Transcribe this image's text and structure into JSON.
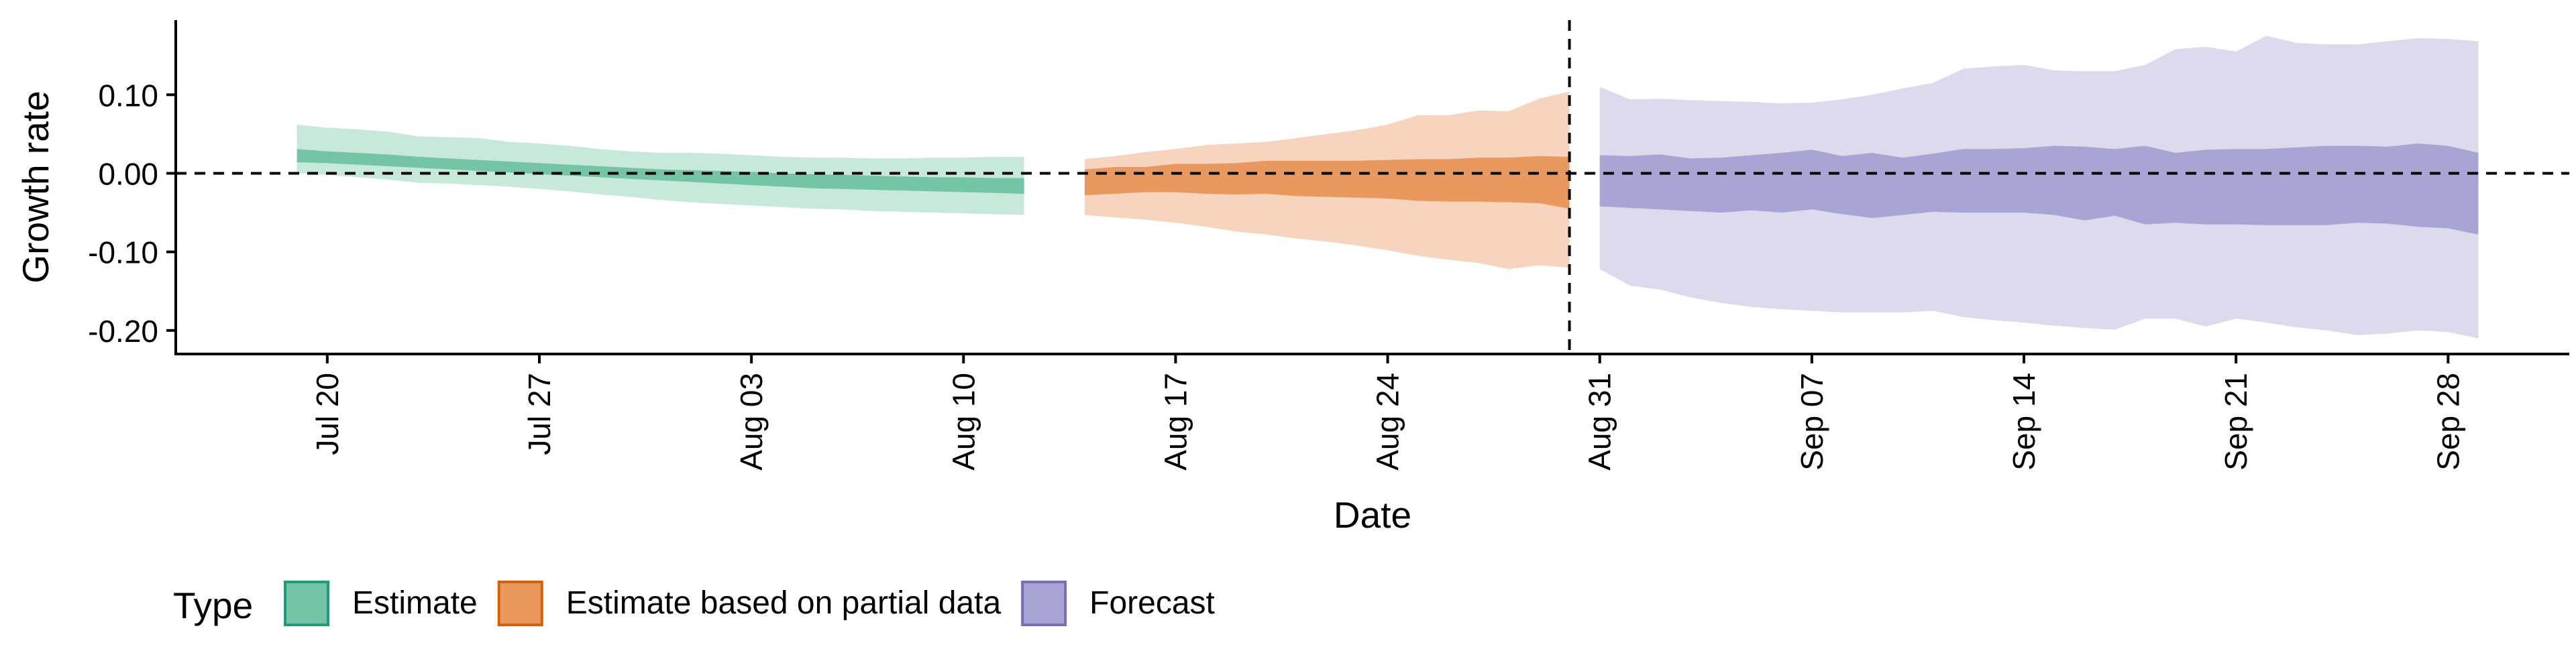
{
  "chart_data": {
    "type": "area",
    "title": "",
    "xlabel": "Date",
    "ylabel": "Growth rate",
    "ylim": [
      -0.23,
      0.195
    ],
    "xlim": [
      "2020-07-15",
      "2020-10-02"
    ],
    "y_ticks": [
      {
        "value": 0.1,
        "label": "0.10"
      },
      {
        "value": 0.0,
        "label": "0.00"
      },
      {
        "value": -0.1,
        "label": "-0.10"
      },
      {
        "value": -0.2,
        "label": "-0.20"
      }
    ],
    "x_ticks": [
      {
        "date": "2020-07-20",
        "label": "Jul 20"
      },
      {
        "date": "2020-07-27",
        "label": "Jul 27"
      },
      {
        "date": "2020-08-03",
        "label": "Aug 03"
      },
      {
        "date": "2020-08-10",
        "label": "Aug 10"
      },
      {
        "date": "2020-08-17",
        "label": "Aug 17"
      },
      {
        "date": "2020-08-24",
        "label": "Aug 24"
      },
      {
        "date": "2020-08-31",
        "label": "Aug 31"
      },
      {
        "date": "2020-09-07",
        "label": "Sep 07"
      },
      {
        "date": "2020-09-14",
        "label": "Sep 14"
      },
      {
        "date": "2020-09-21",
        "label": "Sep 21"
      },
      {
        "date": "2020-09-28",
        "label": "Sep 28"
      }
    ],
    "reference_lines": [
      {
        "axis": "y",
        "value": 0.0,
        "style": "dashed"
      },
      {
        "axis": "x",
        "value": "2020-08-30",
        "style": "dashed"
      }
    ],
    "legend": {
      "title": "Type",
      "position": "bottom-left",
      "entries": [
        {
          "label": "Estimate",
          "fill": "#74c4a8",
          "border": "#1b9e77"
        },
        {
          "label": "Estimate based on partial data",
          "fill": "#e9995e",
          "border": "#d95f02"
        },
        {
          "label": "Forecast",
          "fill": "#a8a4d4",
          "border": "#7570b3"
        }
      ]
    },
    "series": [
      {
        "name": "Estimate",
        "color_inner": "#74c4a8",
        "color_outer": "#c7e9dc",
        "x": [
          "2020-07-19",
          "2020-07-20",
          "2020-07-21",
          "2020-07-22",
          "2020-07-23",
          "2020-07-24",
          "2020-07-25",
          "2020-07-26",
          "2020-07-27",
          "2020-07-28",
          "2020-07-29",
          "2020-07-30",
          "2020-07-31",
          "2020-08-01",
          "2020-08-02",
          "2020-08-03",
          "2020-08-04",
          "2020-08-05",
          "2020-08-06",
          "2020-08-07",
          "2020-08-08",
          "2020-08-09",
          "2020-08-10",
          "2020-08-11",
          "2020-08-12"
        ],
        "outer_upper": [
          0.062,
          0.058,
          0.056,
          0.053,
          0.047,
          0.046,
          0.045,
          0.04,
          0.038,
          0.035,
          0.031,
          0.028,
          0.026,
          0.026,
          0.025,
          0.023,
          0.021,
          0.02,
          0.02,
          0.019,
          0.019,
          0.02,
          0.02,
          0.021,
          0.021
        ],
        "outer_lower": [
          0.0,
          -0.002,
          -0.005,
          -0.008,
          -0.012,
          -0.013,
          -0.015,
          -0.017,
          -0.02,
          -0.023,
          -0.027,
          -0.03,
          -0.034,
          -0.037,
          -0.039,
          -0.041,
          -0.043,
          -0.045,
          -0.046,
          -0.048,
          -0.049,
          -0.05,
          -0.051,
          -0.052,
          -0.053
        ],
        "inner_upper": [
          0.031,
          0.028,
          0.026,
          0.024,
          0.021,
          0.019,
          0.017,
          0.015,
          0.013,
          0.011,
          0.009,
          0.007,
          0.005,
          0.004,
          0.003,
          0.002,
          0.0,
          -0.001,
          -0.002,
          -0.003,
          -0.004,
          -0.005,
          -0.005,
          -0.006,
          -0.006
        ],
        "inner_lower": [
          0.014,
          0.013,
          0.011,
          0.009,
          0.007,
          0.005,
          0.003,
          0.001,
          -0.001,
          -0.003,
          -0.005,
          -0.007,
          -0.009,
          -0.011,
          -0.013,
          -0.015,
          -0.017,
          -0.019,
          -0.02,
          -0.021,
          -0.022,
          -0.023,
          -0.024,
          -0.025,
          -0.026
        ]
      },
      {
        "name": "Estimate based on partial data",
        "color_inner": "#e9995e",
        "color_outer": "#f6d4bd",
        "x": [
          "2020-08-14",
          "2020-08-15",
          "2020-08-16",
          "2020-08-17",
          "2020-08-18",
          "2020-08-19",
          "2020-08-20",
          "2020-08-21",
          "2020-08-22",
          "2020-08-23",
          "2020-08-24",
          "2020-08-25",
          "2020-08-26",
          "2020-08-27",
          "2020-08-28",
          "2020-08-29",
          "2020-08-30"
        ],
        "outer_upper": [
          0.018,
          0.022,
          0.027,
          0.031,
          0.036,
          0.038,
          0.04,
          0.045,
          0.05,
          0.055,
          0.062,
          0.074,
          0.074,
          0.08,
          0.079,
          0.095,
          0.104
        ],
        "outer_lower": [
          -0.053,
          -0.056,
          -0.059,
          -0.063,
          -0.068,
          -0.074,
          -0.078,
          -0.083,
          -0.087,
          -0.092,
          -0.098,
          -0.105,
          -0.11,
          -0.114,
          -0.122,
          -0.117,
          -0.12
        ],
        "inner_upper": [
          0.005,
          0.008,
          0.008,
          0.012,
          0.012,
          0.013,
          0.016,
          0.016,
          0.016,
          0.016,
          0.017,
          0.018,
          0.018,
          0.02,
          0.02,
          0.022,
          0.021
        ],
        "inner_lower": [
          -0.028,
          -0.026,
          -0.024,
          -0.024,
          -0.026,
          -0.027,
          -0.026,
          -0.029,
          -0.03,
          -0.031,
          -0.032,
          -0.035,
          -0.036,
          -0.036,
          -0.037,
          -0.038,
          -0.045
        ]
      },
      {
        "name": "Forecast",
        "color_inner": "#a8a4d4",
        "color_outer": "#dcdaec",
        "x": [
          "2020-08-31",
          "2020-09-01",
          "2020-09-02",
          "2020-09-03",
          "2020-09-04",
          "2020-09-05",
          "2020-09-06",
          "2020-09-07",
          "2020-09-08",
          "2020-09-09",
          "2020-09-10",
          "2020-09-11",
          "2020-09-12",
          "2020-09-13",
          "2020-09-14",
          "2020-09-15",
          "2020-09-16",
          "2020-09-17",
          "2020-09-18",
          "2020-09-19",
          "2020-09-20",
          "2020-09-21",
          "2020-09-22",
          "2020-09-23",
          "2020-09-24",
          "2020-09-25",
          "2020-09-26",
          "2020-09-27",
          "2020-09-28",
          "2020-09-29"
        ],
        "outer_upper": [
          0.11,
          0.094,
          0.095,
          0.093,
          0.092,
          0.091,
          0.089,
          0.09,
          0.094,
          0.1,
          0.108,
          0.115,
          0.133,
          0.136,
          0.138,
          0.131,
          0.13,
          0.13,
          0.138,
          0.158,
          0.161,
          0.155,
          0.175,
          0.166,
          0.164,
          0.164,
          0.168,
          0.172,
          0.171,
          0.168
        ],
        "outer_lower": [
          -0.122,
          -0.143,
          -0.148,
          -0.158,
          -0.165,
          -0.17,
          -0.173,
          -0.175,
          -0.177,
          -0.177,
          -0.177,
          -0.175,
          -0.183,
          -0.187,
          -0.19,
          -0.194,
          -0.197,
          -0.199,
          -0.185,
          -0.185,
          -0.195,
          -0.185,
          -0.19,
          -0.196,
          -0.2,
          -0.206,
          -0.204,
          -0.2,
          -0.202,
          -0.21
        ],
        "inner_upper": [
          0.023,
          0.022,
          0.024,
          0.019,
          0.02,
          0.023,
          0.026,
          0.03,
          0.022,
          0.026,
          0.02,
          0.025,
          0.031,
          0.031,
          0.032,
          0.035,
          0.034,
          0.031,
          0.035,
          0.026,
          0.03,
          0.031,
          0.031,
          0.033,
          0.035,
          0.035,
          0.034,
          0.038,
          0.035,
          0.026
        ],
        "inner_lower": [
          -0.042,
          -0.044,
          -0.046,
          -0.048,
          -0.05,
          -0.047,
          -0.05,
          -0.046,
          -0.052,
          -0.057,
          -0.053,
          -0.049,
          -0.05,
          -0.05,
          -0.05,
          -0.053,
          -0.06,
          -0.054,
          -0.065,
          -0.063,
          -0.065,
          -0.065,
          -0.066,
          -0.066,
          -0.066,
          -0.063,
          -0.064,
          -0.068,
          -0.07,
          -0.078
        ]
      }
    ]
  }
}
